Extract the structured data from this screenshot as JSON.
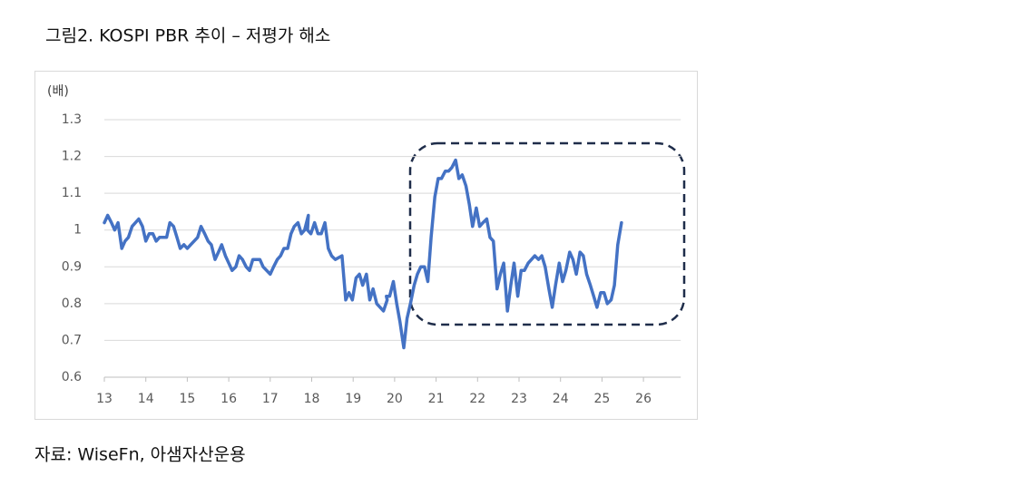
{
  "chart_data": {
    "type": "line",
    "title": "그림2. KOSPI PBR 추이 – 저평가 해소",
    "y_label": "(배)",
    "source": "자료: WiseFn,  아샘자산운용",
    "x": [
      13.0,
      13.08,
      13.17,
      13.25,
      13.33,
      13.42,
      13.5,
      13.58,
      13.67,
      13.83,
      13.92,
      14.0,
      14.08,
      14.17,
      14.25,
      14.33,
      14.5,
      14.58,
      14.67,
      14.75,
      14.83,
      14.92,
      15.0,
      15.08,
      15.25,
      15.33,
      15.42,
      15.5,
      15.58,
      15.67,
      15.75,
      15.83,
      15.92,
      16.0,
      16.08,
      16.17,
      16.25,
      16.33,
      16.42,
      16.5,
      16.58,
      16.75,
      16.83,
      17.0,
      17.08,
      17.17,
      17.25,
      17.33,
      17.42,
      17.5,
      17.58,
      17.67,
      17.75,
      17.83,
      17.92,
      17.9,
      17.98,
      18.07,
      18.15,
      18.23,
      18.32,
      18.4,
      18.48,
      18.57,
      18.73,
      18.82,
      18.9,
      18.98,
      19.07,
      19.15,
      19.23,
      19.32,
      19.4,
      19.48,
      19.57,
      19.73,
      19.82,
      19.8,
      19.88,
      19.97,
      20.05,
      20.13,
      20.22,
      20.3,
      20.38,
      20.47,
      20.55,
      20.63,
      20.72,
      20.8,
      20.88,
      20.97,
      21.05,
      21.13,
      21.22,
      21.3,
      21.38,
      21.47,
      21.55,
      21.63,
      21.72,
      21.8,
      21.88,
      21.97,
      22.05,
      22.13,
      22.22,
      22.3,
      22.38,
      22.47,
      22.55,
      22.63,
      22.72,
      22.8,
      22.88,
      22.97,
      23.05,
      23.13,
      23.22,
      23.3,
      23.38,
      23.47,
      23.55,
      23.63,
      23.72,
      23.8,
      23.88,
      23.97,
      24.05,
      24.13,
      24.22,
      24.3,
      24.38,
      24.47,
      24.55,
      24.63,
      24.72,
      24.8,
      24.88,
      24.97,
      25.05,
      25.13,
      25.22,
      25.3,
      25.38,
      25.47
    ],
    "series": [
      {
        "name": "KOSPI PBR",
        "color": "#4472c4",
        "values": [
          1.02,
          1.04,
          1.02,
          1.0,
          1.02,
          0.95,
          0.97,
          0.98,
          1.01,
          1.03,
          1.01,
          0.97,
          0.99,
          0.99,
          0.97,
          0.98,
          0.98,
          1.02,
          1.01,
          0.98,
          0.95,
          0.96,
          0.95,
          0.96,
          0.98,
          1.01,
          0.99,
          0.97,
          0.96,
          0.92,
          0.94,
          0.96,
          0.93,
          0.91,
          0.89,
          0.9,
          0.93,
          0.92,
          0.9,
          0.89,
          0.92,
          0.92,
          0.9,
          0.88,
          0.9,
          0.92,
          0.93,
          0.95,
          0.95,
          0.99,
          1.01,
          1.02,
          0.99,
          1.0,
          1.04,
          1.0,
          0.99,
          1.02,
          0.99,
          0.99,
          1.02,
          0.95,
          0.93,
          0.92,
          0.93,
          0.81,
          0.83,
          0.81,
          0.87,
          0.88,
          0.85,
          0.88,
          0.81,
          0.84,
          0.8,
          0.78,
          0.81,
          0.82,
          0.82,
          0.86,
          0.8,
          0.75,
          0.68,
          0.76,
          0.8,
          0.85,
          0.88,
          0.9,
          0.9,
          0.86,
          0.98,
          1.09,
          1.14,
          1.14,
          1.16,
          1.16,
          1.17,
          1.19,
          1.14,
          1.15,
          1.12,
          1.07,
          1.01,
          1.06,
          1.01,
          1.02,
          1.03,
          0.98,
          0.97,
          0.84,
          0.88,
          0.91,
          0.78,
          0.85,
          0.91,
          0.82,
          0.89,
          0.89,
          0.91,
          0.92,
          0.93,
          0.92,
          0.93,
          0.9,
          0.84,
          0.79,
          0.85,
          0.91,
          0.86,
          0.89,
          0.94,
          0.92,
          0.88,
          0.94,
          0.93,
          0.88,
          0.85,
          0.82,
          0.79,
          0.83,
          0.83,
          0.8,
          0.81,
          0.85,
          0.96,
          1.02
        ]
      }
    ],
    "xlim": [
      13,
      26.9
    ],
    "xticks": [
      13,
      14,
      15,
      16,
      17,
      18,
      19,
      20,
      21,
      22,
      23,
      24,
      25,
      26
    ],
    "ylim": [
      0.6,
      1.3
    ],
    "yticks": [
      0.6,
      0.7,
      0.8,
      0.9,
      1.0,
      1.1,
      1.2,
      1.3
    ],
    "grid": true
  }
}
